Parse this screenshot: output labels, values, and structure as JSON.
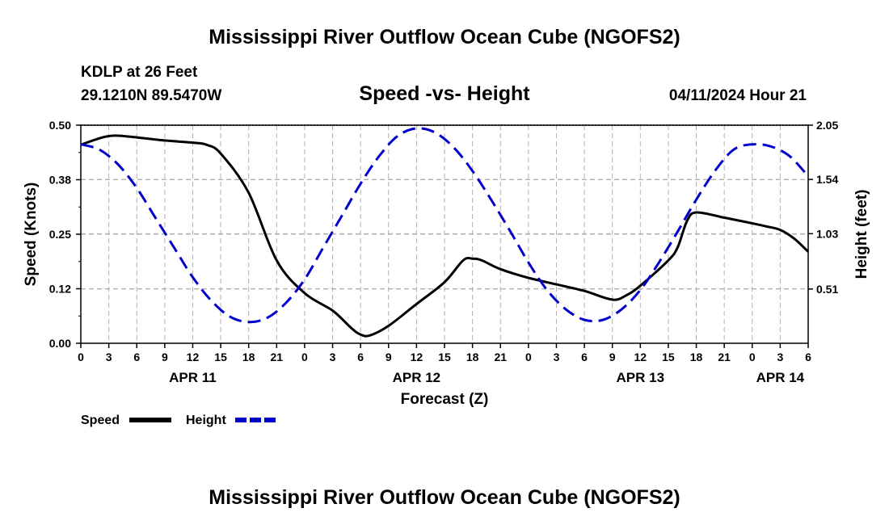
{
  "header": {
    "title": "Mississippi River Outflow Ocean Cube (NGOFS2)",
    "station": "KDLP at 26 Feet",
    "coords": "29.1210N  89.5470W",
    "subtitle": "Speed -vs- Height",
    "datetime": "04/11/2024 Hour 21",
    "bottom_title": "Mississippi River Outflow Ocean Cube (NGOFS2)"
  },
  "colors": {
    "speed": "#000000",
    "height": "#0000cc",
    "grid": "#b0b0b0"
  },
  "chart_data": {
    "type": "line",
    "title": "Speed -vs- Height",
    "xlabel": "Forecast (Z)",
    "ylabel": "Speed (Knots)",
    "y2label": "Height (feet)",
    "x_unit": "hours from 04/11 00Z",
    "xlim": [
      0,
      78
    ],
    "ylim": [
      0.0,
      0.5
    ],
    "y2lim": [
      0.0,
      2.05
    ],
    "x_ticks": [
      0,
      3,
      6,
      9,
      12,
      15,
      18,
      21,
      24,
      27,
      30,
      33,
      36,
      39,
      42,
      45,
      48,
      51,
      54,
      57,
      60,
      63,
      66,
      69,
      72,
      75,
      78
    ],
    "x_tick_labels": [
      "0",
      "3",
      "6",
      "9",
      "12",
      "15",
      "18",
      "21",
      "0",
      "3",
      "6",
      "9",
      "12",
      "15",
      "18",
      "21",
      "0",
      "3",
      "6",
      "9",
      "12",
      "15",
      "18",
      "21",
      "0",
      "3",
      "6"
    ],
    "y_ticks": [
      0.0,
      0.125,
      0.25,
      0.375,
      0.5
    ],
    "y_tick_labels": [
      "0.00",
      "0.12",
      "0.25",
      "0.38",
      "0.50"
    ],
    "y2_ticks": [
      0.51,
      1.03,
      1.54,
      2.05
    ],
    "y2_tick_labels": [
      "0.51",
      "1.03",
      "1.54",
      "2.05"
    ],
    "day_labels": [
      {
        "x": 12,
        "label": "APR 11"
      },
      {
        "x": 36,
        "label": "APR 12"
      },
      {
        "x": 60,
        "label": "APR 13"
      },
      {
        "x": 75,
        "label": "APR 14"
      }
    ],
    "series": [
      {
        "name": "Speed",
        "axis": "left",
        "style": "solid",
        "x": [
          0,
          2,
          3,
          4,
          6,
          9,
          12,
          13.5,
          15,
          18,
          21,
          24,
          27,
          29,
          30,
          31,
          33,
          36,
          39,
          41,
          42,
          43,
          45,
          48,
          51,
          54,
          57,
          58.5,
          60,
          63,
          64,
          65,
          66,
          69,
          72,
          73.5,
          75,
          76.5,
          78
        ],
        "values": [
          0.455,
          0.47,
          0.475,
          0.476,
          0.472,
          0.465,
          0.46,
          0.455,
          0.435,
          0.345,
          0.19,
          0.115,
          0.075,
          0.035,
          0.02,
          0.018,
          0.04,
          0.09,
          0.14,
          0.19,
          0.194,
          0.19,
          0.17,
          0.15,
          0.135,
          0.12,
          0.1,
          0.11,
          0.132,
          0.19,
          0.22,
          0.28,
          0.3,
          0.288,
          0.275,
          0.268,
          0.26,
          0.24,
          0.21
        ]
      },
      {
        "name": "Height",
        "axis": "right",
        "style": "dashed",
        "x": [
          0,
          2,
          4,
          6,
          8,
          10,
          12,
          14,
          16,
          18,
          20,
          22,
          24,
          26,
          28,
          30,
          32,
          34,
          36,
          38,
          40,
          42,
          44,
          46,
          48,
          50,
          52,
          54,
          56,
          58,
          60,
          62,
          64,
          66,
          68,
          70,
          72,
          74,
          76,
          78
        ],
        "values": [
          1.87,
          1.82,
          1.68,
          1.46,
          1.18,
          0.9,
          0.62,
          0.4,
          0.25,
          0.2,
          0.24,
          0.38,
          0.6,
          0.9,
          1.2,
          1.5,
          1.76,
          1.95,
          2.02,
          1.98,
          1.84,
          1.62,
          1.35,
          1.06,
          0.76,
          0.5,
          0.32,
          0.22,
          0.22,
          0.32,
          0.5,
          0.76,
          1.05,
          1.35,
          1.62,
          1.82,
          1.87,
          1.85,
          1.76,
          1.57
        ]
      }
    ],
    "legend": [
      {
        "label": "Speed",
        "style": "solid"
      },
      {
        "label": "Height",
        "style": "dashed"
      }
    ]
  }
}
